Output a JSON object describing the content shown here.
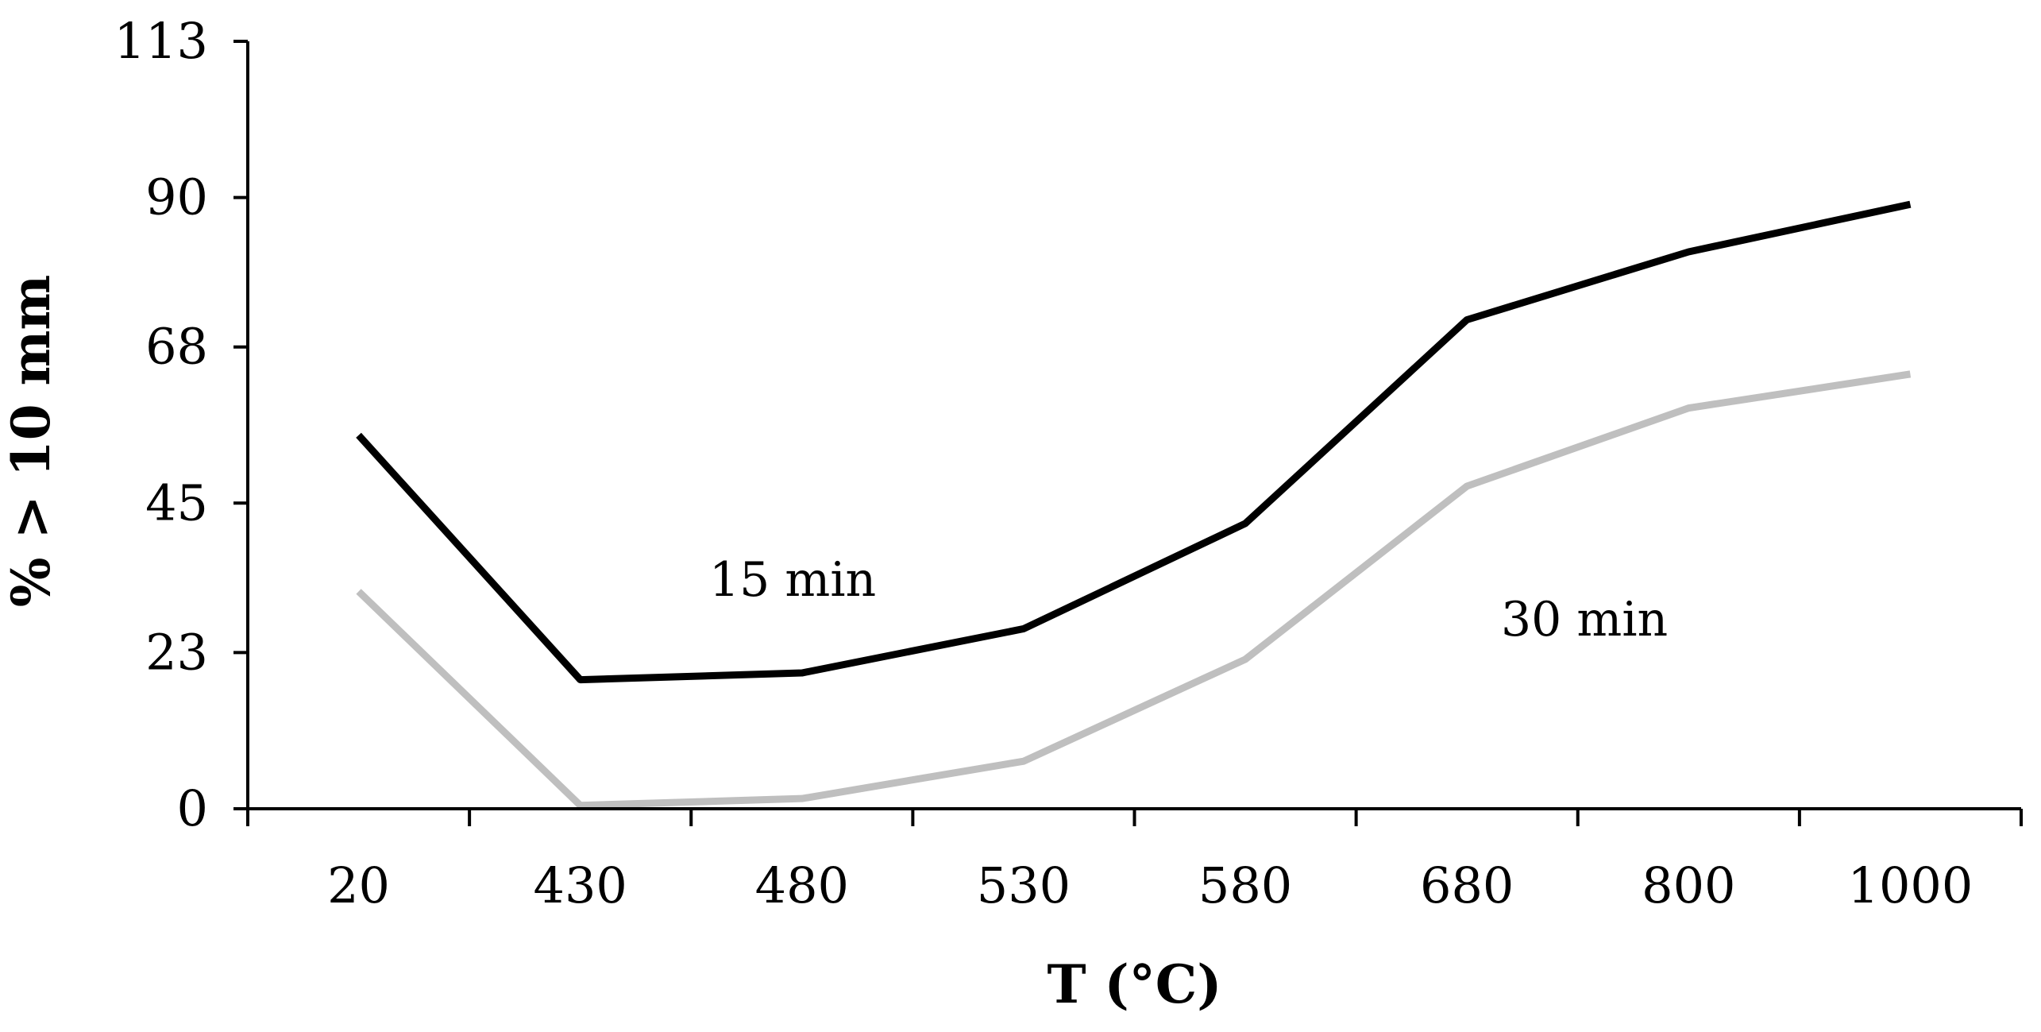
{
  "chart_data": {
    "type": "line",
    "title": "",
    "xlabel": "T (°C)",
    "ylabel": "% > 10 mm",
    "categories": [
      "20",
      "430",
      "480",
      "530",
      "580",
      "680",
      "800",
      "1000"
    ],
    "yticks": [
      0,
      23,
      45,
      68,
      90,
      113
    ],
    "ylim": [
      0,
      113
    ],
    "grid": false,
    "series": [
      {
        "name": "15 min",
        "label": "15 min",
        "color": "#000000",
        "values": [
          55,
          19,
          20,
          26.5,
          42,
          72,
          82,
          89
        ]
      },
      {
        "name": "30 min",
        "label": "30 min",
        "color": "#bfbfbf",
        "values": [
          32,
          0.5,
          1.5,
          7,
          22,
          47.5,
          59,
          64
        ]
      }
    ]
  }
}
